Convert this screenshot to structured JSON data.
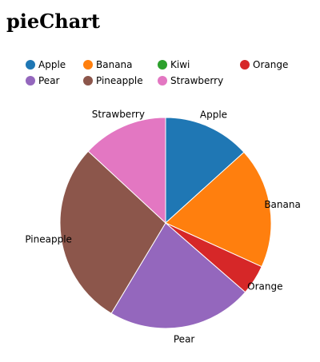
{
  "page": {
    "title": "pieChart"
  },
  "chart_data": {
    "type": "pie",
    "title": "",
    "legend_position": "top",
    "legend": [
      "Apple",
      "Banana",
      "Kiwi",
      "Orange",
      "Pear",
      "Pineapple",
      "Strawberry"
    ],
    "slices": [
      {
        "label": "Apple",
        "value": 13.3,
        "color": "#1f77b4"
      },
      {
        "label": "Banana",
        "value": 18.5,
        "color": "#ff7f0e"
      },
      {
        "label": "Kiwi",
        "value": 0,
        "color": "#2ca02c"
      },
      {
        "label": "Orange",
        "value": 4.6,
        "color": "#d62728"
      },
      {
        "label": "Pear",
        "value": 22.2,
        "color": "#9467bd"
      },
      {
        "label": "Pineapple",
        "value": 28.3,
        "color": "#8c564b"
      },
      {
        "label": "Strawberry",
        "value": 13.1,
        "color": "#e377c2"
      }
    ],
    "slice_labels": [
      "Apple",
      "Banana",
      "Orange",
      "Pear",
      "Pineapple",
      "Strawberry"
    ]
  }
}
